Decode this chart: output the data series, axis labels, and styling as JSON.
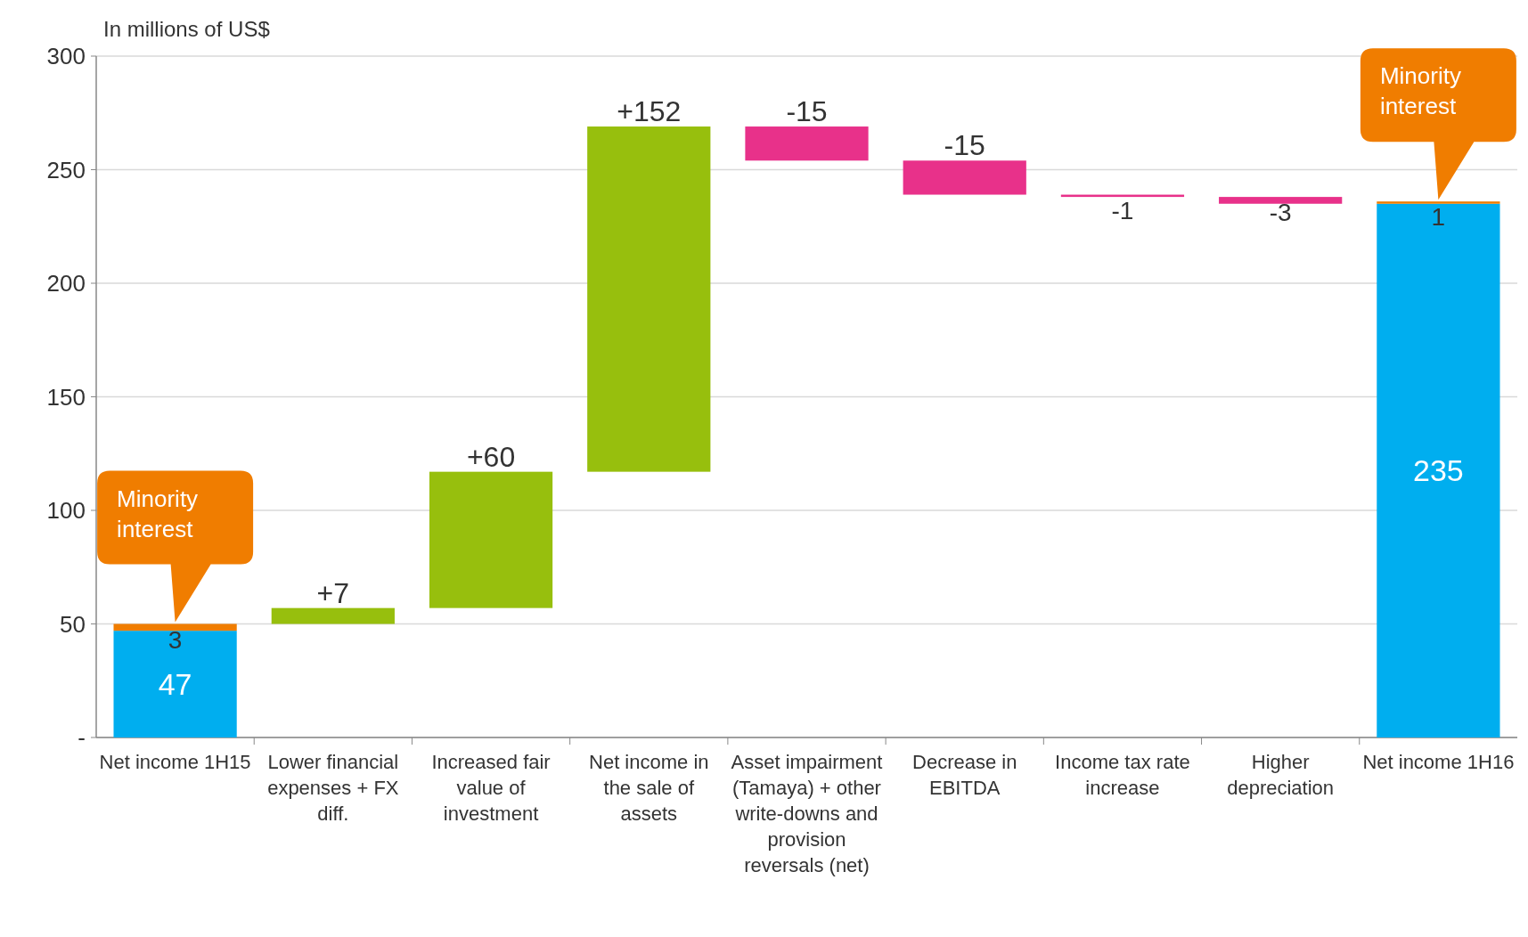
{
  "chart_data": {
    "type": "bar",
    "ylabel": "In millions of US$",
    "categories": [
      "Net income 1H15",
      "Lower financial expenses + FX diff.",
      "Increased fair value of investment",
      "Net income in the sale of assets",
      "Asset impairment (Tamaya) + other write-downs and provision reversals (net)",
      "Decrease in EBITDA",
      "Income tax rate increase",
      "Higher depreciation",
      "Net income 1H16"
    ],
    "series": [
      {
        "colors": [
          "#00aeef",
          "#97bf0d",
          "#97bf0d",
          "#97bf0d",
          "#e8318a",
          "#e8318a",
          "#e8318a",
          "#e8318a",
          "#00aeef"
        ],
        "base": [
          0,
          50,
          57,
          117,
          269,
          254,
          239,
          238,
          0
        ],
        "values": [
          47,
          7,
          60,
          152,
          -15,
          -15,
          -1,
          -3,
          235
        ],
        "value_labels": [
          "47",
          "+7",
          "+60",
          "+152",
          "-15",
          "-15",
          "-1",
          "-3",
          "235"
        ]
      },
      {
        "color": "#f07d00",
        "base": [
          47,
          null,
          null,
          null,
          null,
          null,
          null,
          null,
          235
        ],
        "values": [
          3,
          null,
          null,
          null,
          null,
          null,
          null,
          null,
          1
        ],
        "value_labels": [
          "3",
          null,
          null,
          null,
          null,
          null,
          null,
          null,
          "1"
        ]
      }
    ],
    "ylim": [
      0,
      300
    ],
    "yticks": [
      {
        "value": 0,
        "label": "-"
      },
      50,
      100,
      150,
      200,
      250,
      300
    ],
    "grid": "y",
    "annotations": [
      "Minority interest",
      "Minority interest"
    ]
  }
}
